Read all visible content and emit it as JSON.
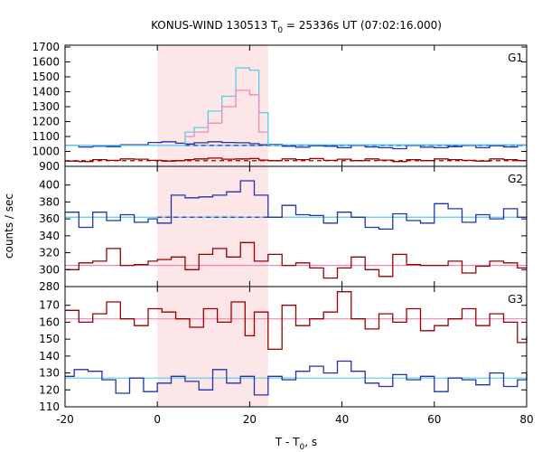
{
  "chart_data": {
    "type": "line",
    "title": {
      "main": "KONUS-WIND 130513 T",
      "sub": "0",
      "rest": " = 25336s UT (07:02:16.000)"
    },
    "xlabel": {
      "main": "T - T",
      "sub": "0",
      "rest": ", s"
    },
    "ylabel": "counts / sec",
    "xlim": [
      -20,
      80
    ],
    "x_ticks": [
      -20,
      0,
      20,
      40,
      60,
      80
    ],
    "highlight": {
      "x": [
        0,
        24
      ],
      "color": "#fde6e8"
    },
    "panels": [
      {
        "name": "G1",
        "ylim": [
          900,
          1700
        ],
        "y_ticks": [
          900,
          1000,
          1100,
          1200,
          1300,
          1400,
          1500,
          1600,
          1700
        ],
        "series": [
          {
            "color": "#2233aa",
            "edges": [
              -20,
              -17,
              -14,
              -11,
              -8,
              -5,
              -2,
              1,
              4,
              6,
              8,
              11,
              14,
              17,
              20,
              22,
              24,
              27,
              30,
              33,
              36,
              39,
              42,
              45,
              48,
              51,
              54,
              57,
              60,
              63,
              66,
              69,
              72,
              75,
              78,
              80
            ],
            "values": [
              1040,
              1030,
              1035,
              1032,
              1045,
              1045,
              1060,
              1065,
              1055,
              1050,
              1058,
              1065,
              1060,
              1058,
              1052,
              1045,
              1048,
              1035,
              1028,
              1038,
              1035,
              1025,
              1040,
              1030,
              1025,
              1018,
              1040,
              1028,
              1025,
              1032,
              1040,
              1025,
              1038,
              1030,
              1045
            ]
          },
          {
            "color": "#990000",
            "edges": [
              -20,
              -17,
              -14,
              -11,
              -8,
              -5,
              -2,
              1,
              4,
              6,
              8,
              11,
              14,
              17,
              20,
              22,
              24,
              27,
              30,
              33,
              36,
              39,
              42,
              45,
              48,
              51,
              54,
              57,
              60,
              63,
              66,
              69,
              72,
              75,
              78,
              80
            ],
            "values": [
              935,
              932,
              945,
              940,
              950,
              948,
              940,
              935,
              938,
              945,
              950,
              955,
              948,
              950,
              952,
              942,
              938,
              950,
              945,
              952,
              940,
              948,
              938,
              950,
              942,
              932,
              945,
              938,
              950,
              945,
              940,
              935,
              950,
              945,
              938
            ]
          },
          {
            "color": "#55ccee",
            "edges": [
              -20,
              6,
              8,
              11,
              14,
              17,
              20,
              22,
              24,
              80
            ],
            "values": [
              1040,
              1130,
              1160,
              1270,
              1370,
              1560,
              1545,
              1260,
              1045
            ]
          },
          {
            "color": "#ee88bb",
            "edges": [
              6,
              8,
              11,
              14,
              17,
              20,
              22,
              24
            ],
            "values": [
              1100,
              1130,
              1190,
              1300,
              1410,
              1380,
              1130
            ]
          }
        ],
        "baselines": [
          {
            "color": "#55ccee",
            "value": 1040,
            "dashed": false,
            "x": [
              -20,
              80
            ]
          },
          {
            "color": "#2233aa",
            "value": 1040,
            "dashed": true,
            "x": [
              6,
              80
            ]
          },
          {
            "color": "#990000",
            "value": 938,
            "dashed": true,
            "x": [
              -20,
              80
            ]
          }
        ]
      },
      {
        "name": "G2",
        "ylim": [
          280,
          420
        ],
        "y_ticks": [
          280,
          300,
          320,
          340,
          360,
          380,
          400
        ],
        "series": [
          {
            "color": "#2233aa",
            "edges": [
              -20,
              -17,
              -14,
              -11,
              -8,
              -5,
              -2,
              0,
              3,
              6,
              9,
              12,
              15,
              18,
              21,
              24,
              27,
              30,
              33,
              36,
              39,
              42,
              45,
              48,
              51,
              54,
              57,
              60,
              63,
              66,
              69,
              72,
              75,
              78,
              80
            ],
            "values": [
              368,
              350,
              368,
              358,
              365,
              356,
              360,
              355,
              388,
              385,
              386,
              388,
              392,
              405,
              388,
              362,
              376,
              365,
              364,
              355,
              368,
              362,
              350,
              348,
              366,
              358,
              355,
              378,
              372,
              356,
              365,
              360,
              372,
              362
            ]
          },
          {
            "color": "#990000",
            "edges": [
              -20,
              -17,
              -14,
              -11,
              -8,
              -5,
              -2,
              0,
              3,
              6,
              9,
              12,
              15,
              18,
              21,
              24,
              27,
              30,
              33,
              36,
              39,
              42,
              45,
              48,
              51,
              54,
              57,
              60,
              63,
              66,
              69,
              72,
              75,
              78,
              80
            ],
            "values": [
              300,
              308,
              310,
              325,
              305,
              306,
              310,
              312,
              315,
              300,
              318,
              325,
              315,
              332,
              310,
              318,
              305,
              308,
              302,
              290,
              302,
              315,
              300,
              292,
              318,
              306,
              305,
              305,
              310,
              296,
              304,
              310,
              308,
              302
            ]
          }
        ],
        "baselines": [
          {
            "color": "#55ccee",
            "value": 362,
            "dashed": false,
            "x": [
              -20,
              80
            ]
          },
          {
            "color": "#2233aa",
            "value": 362,
            "dashed": true,
            "x": [
              0,
              24
            ]
          },
          {
            "color": "#ee88bb",
            "value": 305,
            "dashed": false,
            "x": [
              -20,
              80
            ]
          }
        ]
      },
      {
        "name": "G3",
        "ylim": [
          110,
          180
        ],
        "y_ticks": [
          110,
          120,
          130,
          140,
          150,
          160,
          170
        ],
        "series": [
          {
            "color": "#990000",
            "edges": [
              -20,
              -17,
              -14,
              -11,
              -8,
              -5,
              -2,
              1,
              4,
              7,
              10,
              13,
              16,
              19,
              21,
              24,
              27,
              30,
              33,
              36,
              39,
              42,
              45,
              48,
              51,
              54,
              57,
              60,
              63,
              66,
              69,
              72,
              75,
              78,
              80
            ],
            "values": [
              167,
              160,
              165,
              172,
              162,
              158,
              168,
              166,
              162,
              157,
              168,
              160,
              172,
              152,
              166,
              144,
              170,
              158,
              162,
              166,
              178,
              162,
              156,
              165,
              160,
              168,
              155,
              158,
              162,
              168,
              158,
              165,
              160,
              148,
              152
            ]
          },
          {
            "color": "#2233aa",
            "edges": [
              -20,
              -18,
              -15,
              -12,
              -9,
              -6,
              -3,
              0,
              3,
              6,
              9,
              12,
              15,
              18,
              21,
              24,
              27,
              30,
              33,
              36,
              39,
              42,
              45,
              48,
              51,
              54,
              57,
              60,
              63,
              66,
              69,
              72,
              75,
              78,
              80
            ],
            "values": [
              128,
              132,
              131,
              126,
              118,
              127,
              119,
              124,
              128,
              125,
              120,
              132,
              124,
              128,
              117,
              128,
              126,
              131,
              134,
              130,
              137,
              131,
              124,
              122,
              129,
              126,
              128,
              119,
              127,
              126,
              123,
              130,
              122,
              126,
              131
            ]
          }
        ],
        "baselines": [
          {
            "color": "#ee88bb",
            "value": 162,
            "dashed": false,
            "x": [
              -20,
              80
            ]
          },
          {
            "color": "#55ccee",
            "value": 127,
            "dashed": false,
            "x": [
              -20,
              80
            ]
          }
        ]
      }
    ]
  }
}
